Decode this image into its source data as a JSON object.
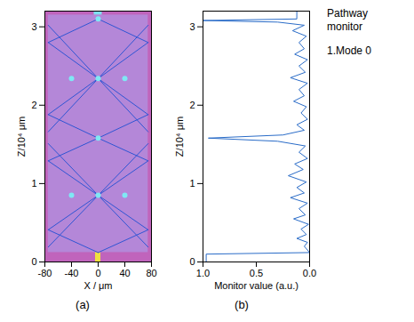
{
  "chart_data": [
    {
      "panel": "(a)",
      "type": "field",
      "xlabel": "X / μm",
      "ylabel": "Z/10⁴ μm",
      "xlim": [
        -80,
        80
      ],
      "xticks": [
        -80,
        -40,
        0,
        40,
        80
      ],
      "ylim": [
        0,
        3.2
      ],
      "yticks": [
        0,
        1,
        2,
        3
      ],
      "background": "#c064bc",
      "regions": [
        {
          "x": [
            -75,
            75
          ],
          "z": [
            0.12,
            3.15
          ],
          "color": "#b487d8"
        },
        {
          "x": [
            -4,
            4
          ],
          "z": [
            0,
            0.12
          ],
          "color": "#f0e040"
        },
        {
          "x": [
            -6,
            6
          ],
          "z": [
            3.15,
            3.2
          ],
          "color": "#7fe0f0"
        }
      ],
      "rays": {
        "color": "#2f55d4",
        "lines": [
          [
            [
              0,
              0.12
            ],
            [
              -75,
              0.41
            ]
          ],
          [
            [
              0,
              0.12
            ],
            [
              75,
              0.41
            ]
          ],
          [
            [
              -75,
              0.19
            ],
            [
              75,
              1.51
            ]
          ],
          [
            [
              75,
              0.19
            ],
            [
              -75,
              1.51
            ]
          ],
          [
            [
              -75,
              0.41
            ],
            [
              0,
              0.85
            ],
            [
              75,
              1.29
            ]
          ],
          [
            [
              75,
              0.41
            ],
            [
              0,
              0.85
            ],
            [
              -75,
              1.29
            ]
          ],
          [
            [
              -75,
              1.29
            ],
            [
              0,
              1.58
            ]
          ],
          [
            [
              75,
              1.29
            ],
            [
              0,
              1.58
            ]
          ],
          [
            [
              0,
              1.58
            ],
            [
              -75,
              1.88
            ]
          ],
          [
            [
              0,
              1.58
            ],
            [
              75,
              1.88
            ]
          ],
          [
            [
              -75,
              1.66
            ],
            [
              75,
              3.02
            ]
          ],
          [
            [
              75,
              1.66
            ],
            [
              -75,
              3.02
            ]
          ],
          [
            [
              -75,
              1.88
            ],
            [
              0,
              2.34
            ],
            [
              75,
              2.8
            ]
          ],
          [
            [
              75,
              1.88
            ],
            [
              0,
              2.34
            ],
            [
              -75,
              2.8
            ]
          ],
          [
            [
              -75,
              2.8
            ],
            [
              0,
              3.1
            ]
          ],
          [
            [
              75,
              2.8
            ],
            [
              0,
              3.1
            ]
          ]
        ]
      },
      "foci": {
        "color": "#7fe8f4",
        "points": [
          [
            0,
            1.58
          ],
          [
            0,
            3.1
          ],
          [
            0,
            0.85
          ],
          [
            0,
            2.34
          ],
          [
            -40,
            0.85
          ],
          [
            40,
            0.85
          ],
          [
            -40,
            2.34
          ],
          [
            40,
            2.34
          ]
        ]
      }
    },
    {
      "panel": "(b)",
      "type": "line",
      "xlabel": "Monitor value (a.u.)",
      "ylabel": "Z/10⁴ μm",
      "xlim": [
        1.0,
        0.0
      ],
      "xticks": [
        {
          "value": 1.0,
          "label": "1.0"
        },
        {
          "value": 0.5,
          "label": "0.5"
        },
        {
          "value": 0.0,
          "label": "0.0"
        }
      ],
      "ylim": [
        0,
        3.2
      ],
      "yticks": [
        0,
        1,
        2,
        3
      ],
      "legend": "right",
      "legend_title": "Pathway monitor",
      "series": [
        {
          "name": "1.Mode 0",
          "color": "#2a6cc8",
          "points": [
            [
              0.97,
              0.0
            ],
            [
              0.97,
              0.1
            ],
            [
              0.0,
              0.12
            ],
            [
              0.05,
              0.2
            ],
            [
              0.02,
              0.25
            ],
            [
              0.12,
              0.3
            ],
            [
              0.03,
              0.35
            ],
            [
              0.08,
              0.42
            ],
            [
              0.01,
              0.48
            ],
            [
              0.15,
              0.55
            ],
            [
              0.04,
              0.6
            ],
            [
              0.1,
              0.68
            ],
            [
              0.02,
              0.75
            ],
            [
              0.18,
              0.82
            ],
            [
              0.05,
              0.88
            ],
            [
              0.12,
              0.95
            ],
            [
              0.03,
              1.02
            ],
            [
              0.2,
              1.1
            ],
            [
              0.06,
              1.18
            ],
            [
              0.14,
              1.25
            ],
            [
              0.02,
              1.32
            ],
            [
              0.1,
              1.4
            ],
            [
              0.04,
              1.48
            ],
            [
              0.3,
              1.54
            ],
            [
              0.95,
              1.58
            ],
            [
              0.25,
              1.62
            ],
            [
              0.05,
              1.68
            ],
            [
              0.12,
              1.75
            ],
            [
              0.02,
              1.82
            ],
            [
              0.08,
              1.9
            ],
            [
              0.03,
              1.98
            ],
            [
              0.15,
              2.05
            ],
            [
              0.05,
              2.12
            ],
            [
              0.1,
              2.2
            ],
            [
              0.02,
              2.28
            ],
            [
              0.18,
              2.35
            ],
            [
              0.04,
              2.42
            ],
            [
              0.1,
              2.5
            ],
            [
              0.02,
              2.58
            ],
            [
              0.14,
              2.65
            ],
            [
              0.05,
              2.72
            ],
            [
              0.1,
              2.8
            ],
            [
              0.03,
              2.88
            ],
            [
              0.16,
              2.95
            ],
            [
              0.05,
              3.02
            ],
            [
              0.3,
              3.06
            ],
            [
              1.0,
              3.08
            ],
            [
              0.12,
              3.1
            ],
            [
              0.12,
              3.2
            ]
          ]
        }
      ]
    }
  ]
}
